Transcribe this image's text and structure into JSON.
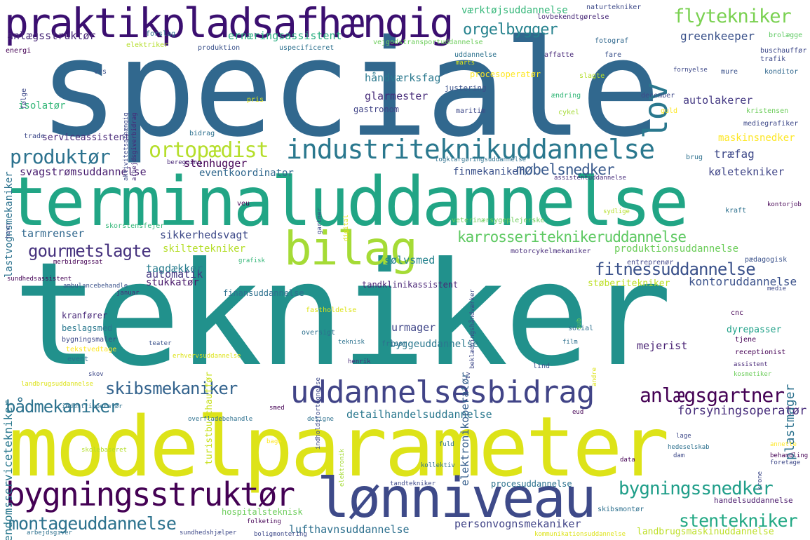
{
  "words": [
    {
      "text": "speciale",
      "color": "#31688e"
    },
    {
      "text": "tekniker",
      "color": "#21918c"
    },
    {
      "text": "modelparameter",
      "color": "#dde318"
    },
    {
      "text": "terminaluddannelse",
      "color": "#21a585"
    },
    {
      "text": "praktikpladsafhængig",
      "color": "#3b0f70"
    },
    {
      "text": "bilag",
      "color": "#a5db36"
    },
    {
      "text": "lønniveau",
      "color": "#3e4a89"
    },
    {
      "text": "uddannelsesbidrag",
      "color": "#414487"
    },
    {
      "text": "bygningsstruktør",
      "color": "#440154"
    },
    {
      "text": "industriteknikuddannelse",
      "color": "#2a788e"
    },
    {
      "text": "karrosseriteknikeruddannelse",
      "color": "#5ec962"
    },
    {
      "text": "flytekniker",
      "color": "#7ad151"
    },
    {
      "text": "orgelbygger",
      "color": "#26828e"
    },
    {
      "text": "lov",
      "color": "#2a788e"
    },
    {
      "text": "ortopædist",
      "color": "#b5de2b"
    },
    {
      "text": "produktør",
      "color": "#2c728e"
    },
    {
      "text": "møbelsnedker",
      "color": "#38598c"
    },
    {
      "text": "gourmetslagte",
      "color": "#46327e"
    },
    {
      "text": "fitnessuddannelse",
      "color": "#3b528b"
    },
    {
      "text": "skibsmekaniker",
      "color": "#33638d"
    },
    {
      "text": "anlægsgartner",
      "color": "#440154"
    },
    {
      "text": "bådmekaniker",
      "color": "#2c728e"
    },
    {
      "text": "bygningssnedker",
      "color": "#1f9e89"
    },
    {
      "text": "montageuddannelse",
      "color": "#2c728e"
    },
    {
      "text": "stentekniker",
      "color": "#22a884"
    },
    {
      "text": "anlægsstruktør",
      "color": "#482878"
    },
    {
      "text": "ernæringsassistent",
      "color": "#28ae80"
    },
    {
      "text": "greenkeeper",
      "color": "#3b528b"
    },
    {
      "text": "værktøjsuddannelse",
      "color": "#35b779"
    },
    {
      "text": "håndværksfag",
      "color": "#2a788e"
    },
    {
      "text": "glarmester",
      "color": "#472c7a"
    },
    {
      "text": "autolakerer",
      "color": "#443983"
    },
    {
      "text": "maskinsnedker",
      "color": "#fde725"
    },
    {
      "text": "træfag",
      "color": "#3e4989"
    },
    {
      "text": "køletekniker",
      "color": "#404688"
    },
    {
      "text": "svagstrømsuddannelse",
      "color": "#481d6f"
    },
    {
      "text": "eventkoordinator",
      "color": "#31688e"
    },
    {
      "text": "stenhugger",
      "color": "#440154"
    },
    {
      "text": "finmekaniker",
      "color": "#3b528b"
    },
    {
      "text": "tarmrenser",
      "color": "#31688e"
    },
    {
      "text": "sikkerhedsvagt",
      "color": "#3e4a89"
    },
    {
      "text": "skiltetekniker",
      "color": "#b5de2b"
    },
    {
      "text": "produktionsuddannelse",
      "color": "#6ccd5a"
    },
    {
      "text": "automatik",
      "color": "#453781"
    },
    {
      "text": "tagdækker",
      "color": "#287c8e"
    },
    {
      "text": "sølvsmed",
      "color": "#25838e"
    },
    {
      "text": "stukkatør",
      "color": "#48186a"
    },
    {
      "text": "tandklinikassistent",
      "color": "#482475"
    },
    {
      "text": "støberitekniker",
      "color": "#bddf26"
    },
    {
      "text": "kontoruddannelse",
      "color": "#3b528b"
    },
    {
      "text": "urmager",
      "color": "#404688"
    },
    {
      "text": "byggeuddannelse",
      "color": "#2a788e"
    },
    {
      "text": "mejerist",
      "color": "#482173"
    },
    {
      "text": "plastmager",
      "color": "#2c728e"
    },
    {
      "text": "detailhandelsuddannelse",
      "color": "#2a788e"
    },
    {
      "text": "forsyningsoperatør",
      "color": "#472d7b"
    },
    {
      "text": "personvognsmekaniker",
      "color": "#414487"
    },
    {
      "text": "lufthavnsuddannelse",
      "color": "#2d708e"
    },
    {
      "text": "elektronikoperatør",
      "color": "#355f8d"
    },
    {
      "text": "ejendomsservicetekniker",
      "color": "#2a788e"
    },
    {
      "text": "lastvognsmekaniker",
      "color": "#2c728e"
    },
    {
      "text": "serviceassistent",
      "color": "#482878"
    },
    {
      "text": "isolatør",
      "color": "#35b779"
    },
    {
      "text": "procesoperatør",
      "color": "#fde725"
    },
    {
      "text": "gastronom",
      "color": "#414487"
    },
    {
      "text": "justering",
      "color": "#3b528b"
    },
    {
      "text": "fotograf",
      "color": "#31688e"
    },
    {
      "text": "buschauffør",
      "color": "#3e4989"
    },
    {
      "text": "konditor",
      "color": "#31688e"
    },
    {
      "text": "turistbuschauffør",
      "color": "#c8e020"
    },
    {
      "text": "finansuddannelse",
      "color": "#2d708e"
    },
    {
      "text": "landbrugsmaskinuddannelse",
      "color": "#bddf26"
    },
    {
      "text": "handelsuddannelse",
      "color": "#48186a"
    },
    {
      "text": "procesuddannelse",
      "color": "#2c728e"
    },
    {
      "text": "hospitalsteknisk",
      "color": "#6ccd5a"
    },
    {
      "text": "receptionist",
      "color": "#440154"
    },
    {
      "text": "dyrepasser",
      "color": "#1fa188"
    },
    {
      "text": "cnc",
      "color": "#440154"
    },
    {
      "text": "veterinærsygeplejerske",
      "color": "#6ccd5a"
    },
    {
      "text": "motorcykelmekaniker",
      "color": "#472c7a"
    },
    {
      "text": "kranfører",
      "color": "#482878"
    },
    {
      "text": "beslagsmed",
      "color": "#2a788e"
    },
    {
      "text": "bygningsmaler",
      "color": "#3e4989"
    },
    {
      "text": "tekstvedtage",
      "color": "#fde725"
    },
    {
      "text": "skorstensfejer",
      "color": "#35b779"
    },
    {
      "text": "entreprenør",
      "color": "#404688"
    },
    {
      "text": "pædagogisk",
      "color": "#3b528b"
    },
    {
      "text": "fastholdelse",
      "color": "#dde318"
    },
    {
      "text": "elektriker",
      "color": "#b5de2b"
    },
    {
      "text": "produktion",
      "color": "#3b528b"
    },
    {
      "text": "uspecificeret",
      "color": "#2d708e"
    },
    {
      "text": "vejgodstransportuddannelse",
      "color": "#6ccd5a"
    },
    {
      "text": "lovbekendtgørelse",
      "color": "#482878"
    },
    {
      "text": "naturtekniker",
      "color": "#3e4a89"
    },
    {
      "text": "forslag",
      "color": "#2d708e"
    },
    {
      "text": "brolægge",
      "color": "#5ec962"
    },
    {
      "text": "energi",
      "color": "#440154"
    },
    {
      "text": "uddannelse",
      "color": "#2c728e"
    },
    {
      "text": "affatte",
      "color": "#482878"
    },
    {
      "text": "fare",
      "color": "#3b528b"
    },
    {
      "text": "trafik",
      "color": "#3e4989"
    },
    {
      "text": "mure",
      "color": "#3b528b"
    },
    {
      "text": "slagte",
      "color": "#b5de2b"
    },
    {
      "text": "ændring",
      "color": "#35b779"
    },
    {
      "text": "december",
      "color": "#3e4989"
    },
    {
      "text": "guld",
      "color": "#fde725"
    },
    {
      "text": "kristensen",
      "color": "#6ccd5a"
    },
    {
      "text": "mediegrafiker",
      "color": "#3e4989"
    },
    {
      "text": "cykel",
      "color": "#a5db36"
    },
    {
      "text": "maritim",
      "color": "#3e4989"
    },
    {
      "text": "pris",
      "color": "#dde318"
    },
    {
      "text": "vvs",
      "color": "#3b528b"
    },
    {
      "text": "følge",
      "color": "#3e4989"
    },
    {
      "text": "trade",
      "color": "#3e4989"
    },
    {
      "text": "bidrag",
      "color": "#2d708e"
    },
    {
      "text": "beregning",
      "color": "#482878"
    },
    {
      "text": "togklargøringsuddannelse",
      "color": "#2d708e"
    },
    {
      "text": "assistentuddannelse",
      "color": "#472d7b"
    },
    {
      "text": "brug",
      "color": "#2d708e"
    },
    {
      "text": "kraft",
      "color": "#2d708e"
    },
    {
      "text": "veu",
      "color": "#440154"
    },
    {
      "text": "havn",
      "color": "#3e4989"
    },
    {
      "text": "gartner",
      "color": "#3e4989"
    },
    {
      "text": "digital",
      "color": "#dde318"
    },
    {
      "text": "grafisk",
      "color": "#35b779"
    },
    {
      "text": "merbidragssat",
      "color": "#440154"
    },
    {
      "text": "ambulancebehandle",
      "color": "#3b528b"
    },
    {
      "text": "januar",
      "color": "#482878"
    },
    {
      "text": "medie",
      "color": "#3e4989"
    },
    {
      "text": "oversigt",
      "color": "#2d708e"
    },
    {
      "text": "social",
      "color": "#2d708e"
    },
    {
      "text": "sub",
      "color": "#6ccd5a"
    },
    {
      "text": "film",
      "color": "#2d708e"
    },
    {
      "text": "tjene",
      "color": "#440154"
    },
    {
      "text": "teknisk",
      "color": "#2c728e"
    },
    {
      "text": "frisør",
      "color": "#2d708e"
    },
    {
      "text": "teater",
      "color": "#3b528b"
    },
    {
      "text": "event",
      "color": "#2c728e"
    },
    {
      "text": "henrik",
      "color": "#482878"
    },
    {
      "text": "tv",
      "color": "#3e4989"
    },
    {
      "text": "lind",
      "color": "#3b528b"
    },
    {
      "text": "andre",
      "color": "#dde318"
    },
    {
      "text": "assistent",
      "color": "#482878"
    },
    {
      "text": "kosmetiker",
      "color": "#6ccd5a"
    },
    {
      "text": "skov",
      "color": "#3e4989"
    },
    {
      "text": "landbrugsuddannelse",
      "color": "#dde318"
    },
    {
      "text": "sundhedsassistent",
      "color": "#440154"
    },
    {
      "text": "erhvervsuddannelse",
      "color": "#dde318"
    },
    {
      "text": "indholdsfortegnelse",
      "color": "#3e4989"
    },
    {
      "text": "beklædningshåndværker",
      "color": "#3e4989"
    },
    {
      "text": "skibsmontør",
      "color": "#2d708e"
    },
    {
      "text": "lage",
      "color": "#3e4989"
    },
    {
      "text": "hedeselskab",
      "color": "#2d708e"
    },
    {
      "text": "dam",
      "color": "#3e4989"
    },
    {
      "text": "annette",
      "color": "#fde725"
    },
    {
      "text": "behandling",
      "color": "#440154"
    },
    {
      "text": "foretage",
      "color": "#3e4989"
    },
    {
      "text": "krone",
      "color": "#3e4989"
    },
    {
      "text": "data",
      "color": "#440154"
    },
    {
      "text": "fuld",
      "color": "#2d708e"
    },
    {
      "text": "kollektiv",
      "color": "#2d708e"
    },
    {
      "text": "tandtekniker",
      "color": "#3e4989"
    },
    {
      "text": "industrioperatør",
      "color": "#2d708e"
    },
    {
      "text": "smed",
      "color": "#440154"
    },
    {
      "text": "overfladebehandle",
      "color": "#2d708e"
    },
    {
      "text": "designe",
      "color": "#2d708e"
    },
    {
      "text": "elektronik",
      "color": "#a5db36"
    },
    {
      "text": "bage",
      "color": "#fde725"
    },
    {
      "text": "eud",
      "color": "#440154"
    },
    {
      "text": "folketing",
      "color": "#440154"
    },
    {
      "text": "sundhedshjælper",
      "color": "#3e4989"
    },
    {
      "text": "boligmontering",
      "color": "#3e4989"
    },
    {
      "text": "arbejdsgiver",
      "color": "#2d708e"
    },
    {
      "text": "kommunikationsuddannelse",
      "color": "#dde318"
    },
    {
      "text": "aktivitetsafhængig",
      "color": "#3e4989"
    },
    {
      "text": "arbejdsgiverbidrag",
      "color": "#482878"
    },
    {
      "text": "skolebaseret",
      "color": "#b5de2b"
    },
    {
      "text": "marts",
      "color": "#dde318"
    },
    {
      "text": "sydlige",
      "color": "#b5de2b"
    },
    {
      "text": "fornyelse",
      "color": "#3e4989"
    },
    {
      "text": "kontorjob",
      "color": "#440154"
    }
  ]
}
